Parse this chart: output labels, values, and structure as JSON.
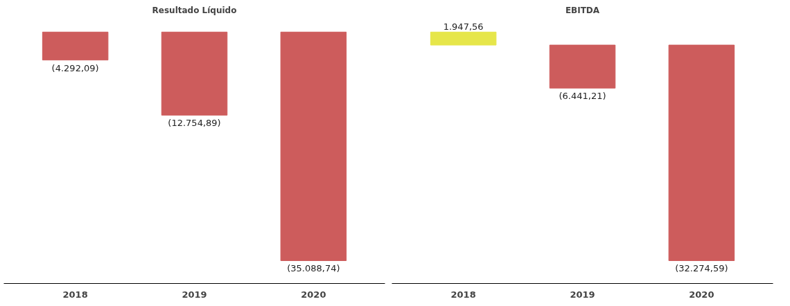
{
  "chart_data": [
    {
      "type": "bar",
      "title": "Resultado Líquido",
      "categories": [
        "2018",
        "2019",
        "2020"
      ],
      "values": [
        -4292.09,
        -12754.89,
        -35088.74
      ],
      "colors": [
        "#cd5c5c",
        "#cd5c5c",
        "#cd5c5c"
      ],
      "value_labels": [
        "(4.292,09)",
        "(12.754,89)",
        "(35.088,74)"
      ],
      "tick_labels": "x",
      "grid": false
    },
    {
      "type": "bar",
      "title": "EBITDA",
      "categories": [
        "2018",
        "2019",
        "2020"
      ],
      "values": [
        1947.56,
        -6441.21,
        -32274.59
      ],
      "colors": [
        "#e6e64a",
        "#cd5c5c",
        "#cd5c5c"
      ],
      "value_labels": [
        "1.947,56",
        "(6.441,21)",
        "(32.274,59)"
      ],
      "tick_labels": "x",
      "grid": false
    }
  ]
}
